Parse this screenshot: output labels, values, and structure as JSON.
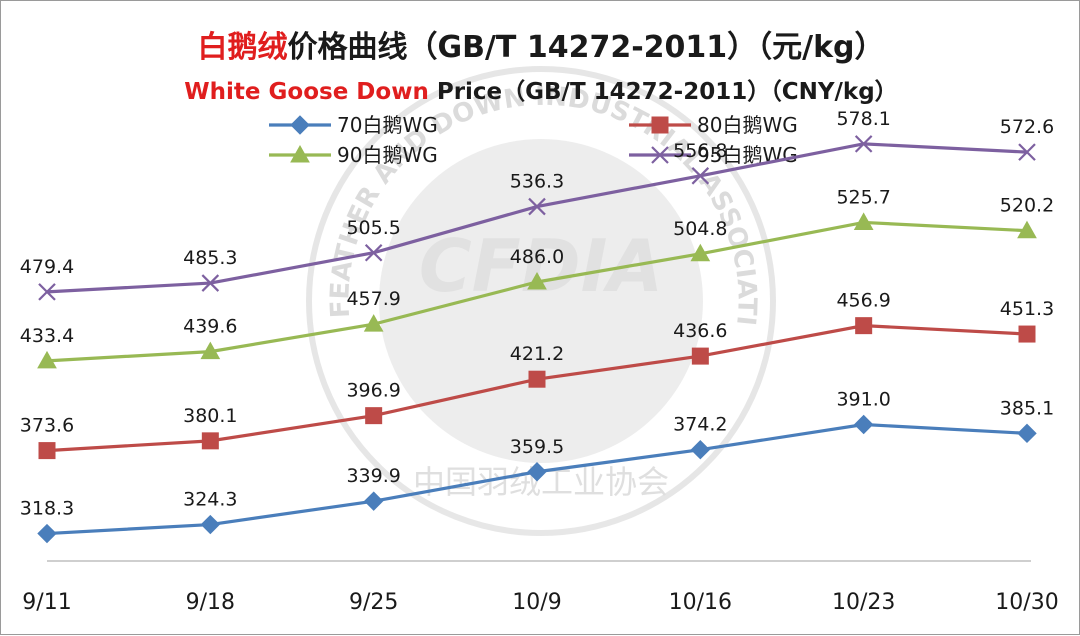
{
  "title": {
    "highlight": "白鹅绒",
    "rest": "价格曲线（GB/T 14272-2011）（元/kg）"
  },
  "subtitle": {
    "highlight": "White Goose Down",
    "rest": " Price（GB/T 14272-2011）（CNY/kg）"
  },
  "watermark": {
    "logo_text": "CFDIA",
    "arc_text": "FEATHER AND DOWN INDUSTRIAL ASSOCIATION",
    "bottom_text": "中国羽绒工业协会"
  },
  "chart_data": {
    "type": "line",
    "title": "白鹅绒价格曲线（GB/T 14272-2011）（元/kg）",
    "subtitle": "White Goose Down Price（GB/T 14272-2011）（CNY/kg）",
    "categories": [
      "9/11",
      "9/18",
      "9/25",
      "10/9",
      "10/16",
      "10/23",
      "10/30"
    ],
    "ylim": [
      300,
      600
    ],
    "grid": false,
    "legend_position": "top",
    "series": [
      {
        "name": "70白鹅WG",
        "color": "#4a7ebb",
        "marker": "diamond",
        "values": [
          318.3,
          324.3,
          339.9,
          359.5,
          374.2,
          391.0,
          385.1
        ]
      },
      {
        "name": "80白鹅WG",
        "color": "#be4b48",
        "marker": "square",
        "values": [
          373.6,
          380.1,
          396.9,
          421.2,
          436.6,
          456.9,
          451.3
        ]
      },
      {
        "name": "90白鹅WG",
        "color": "#98b954",
        "marker": "triangle",
        "values": [
          433.4,
          439.6,
          457.9,
          486.0,
          504.8,
          525.7,
          520.2
        ]
      },
      {
        "name": "95白鹅WG",
        "color": "#7d60a0",
        "marker": "x",
        "values": [
          479.4,
          485.3,
          505.5,
          536.3,
          556.8,
          578.1,
          572.6
        ]
      }
    ]
  }
}
